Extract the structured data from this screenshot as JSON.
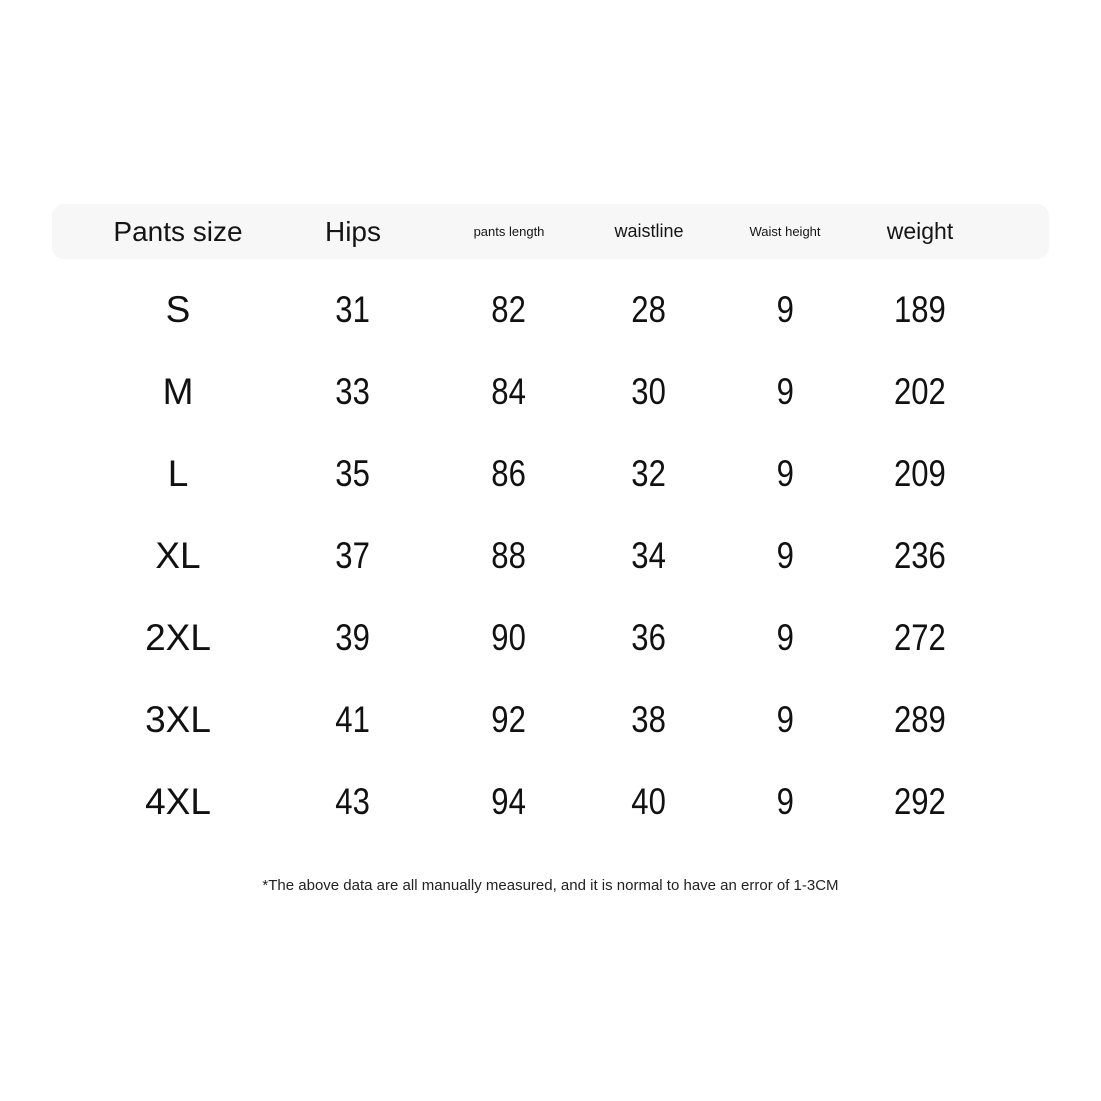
{
  "chart_data": {
    "type": "table",
    "columns": [
      "Pants size",
      "Hips",
      "pants length",
      "waistline",
      "Waist height",
      "weight"
    ],
    "rows": [
      [
        "S",
        "31",
        "82",
        "28",
        "9",
        "189"
      ],
      [
        "M",
        "33",
        "84",
        "30",
        "9",
        "202"
      ],
      [
        "L",
        "35",
        "86",
        "32",
        "9",
        "209"
      ],
      [
        "XL",
        "37",
        "88",
        "34",
        "9",
        "236"
      ],
      [
        "2XL",
        "39",
        "90",
        "36",
        "9",
        "272"
      ],
      [
        "3XL",
        "41",
        "92",
        "38",
        "9",
        "289"
      ],
      [
        "4XL",
        "43",
        "94",
        "40",
        "9",
        "292"
      ]
    ],
    "footnote": "*The above data are all manually measured, and it is normal to have an error of 1-3CM"
  },
  "colors": {
    "page_bg": "#ffffff",
    "header_bg": "#f7f7f7",
    "text": "#111111"
  }
}
